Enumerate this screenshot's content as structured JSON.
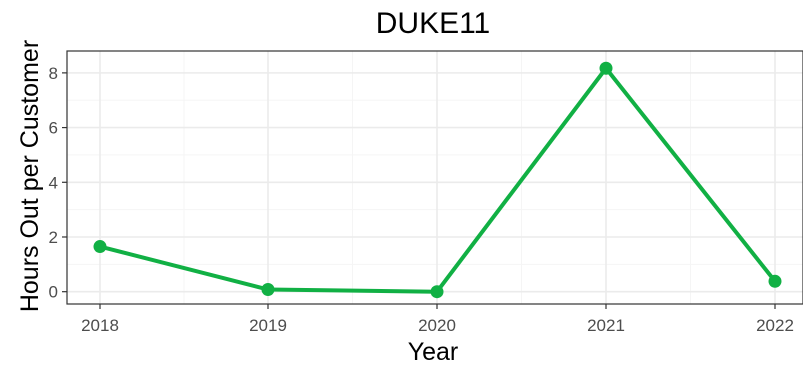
{
  "chart_data": {
    "type": "line",
    "title": "DUKE11",
    "xlabel": "Year",
    "ylabel": "Hours Out per Customer",
    "x": [
      "2018",
      "2019",
      "2020",
      "2021",
      "2022"
    ],
    "series": [
      {
        "values": [
          1.65,
          0.08,
          0.0,
          8.17,
          0.38
        ]
      }
    ],
    "ylim": [
      -0.45,
      8.8
    ],
    "yticks": [
      0,
      2,
      4,
      6,
      8
    ],
    "grid": true,
    "colors": {
      "line": "#11b044",
      "grid_major": "#ebebeb",
      "grid_minor": "#f5f5f5",
      "border": "#333333"
    }
  }
}
